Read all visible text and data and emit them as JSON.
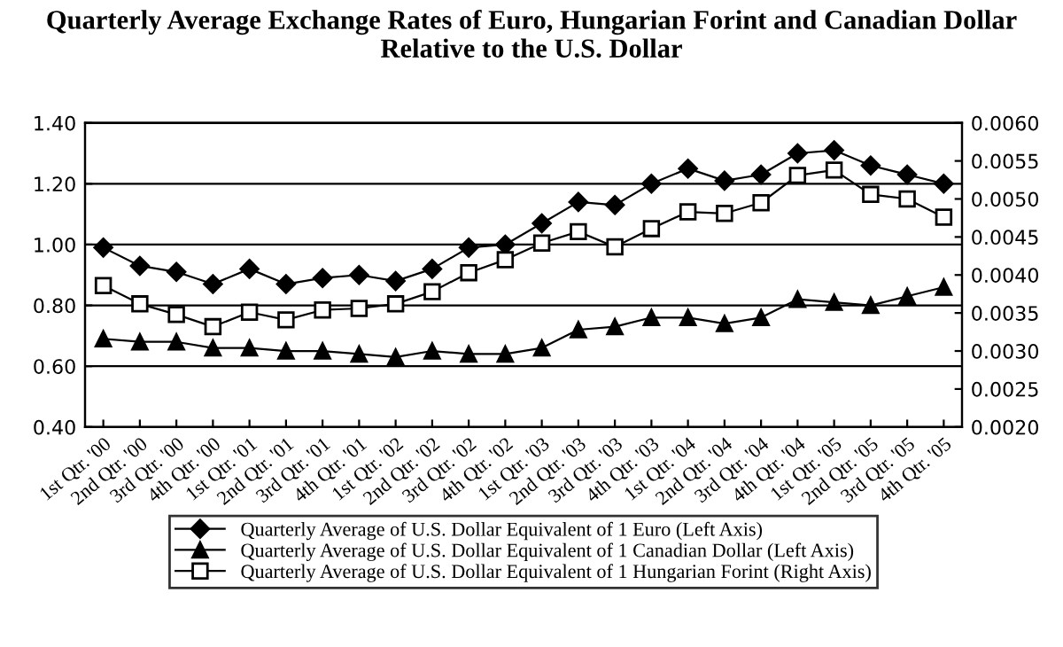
{
  "chart_data": {
    "type": "line",
    "title": "Quarterly Average Exchange Rates of Euro, Hungarian Forint and Canadian Dollar Relative to the U.S. Dollar",
    "categories": [
      "1st Qtr. '00",
      "2nd Qtr. '00",
      "3rd Qtr. '00",
      "4th Qtr. '00",
      "1st Qtr. '01",
      "2nd Qtr. '01",
      "3rd Qtr. '01",
      "4th Qtr. '01",
      "1st Qtr. '02",
      "2nd Qtr. '02",
      "3rd Qtr. '02",
      "4th Qtr. '02",
      "1st Qtr. '03",
      "2nd Qtr. '03",
      "3rd Qtr. '03",
      "4th Qtr. '03",
      "1st Qtr. '04",
      "2nd Qtr. '04",
      "3rd Qtr. '04",
      "4th Qtr. '04",
      "1st Qtr. '05",
      "2nd Qtr. '05",
      "3rd Qtr. '05",
      "4th Qtr. '05"
    ],
    "series": [
      {
        "name": "Quarterly Average of U.S. Dollar Equivalent of 1 Euro (Left Axis)",
        "color": "#000000",
        "marker": "diamond",
        "values": [
          0.99,
          0.93,
          0.91,
          0.87,
          0.92,
          0.87,
          0.89,
          0.9,
          0.88,
          0.92,
          0.99,
          1.0,
          1.07,
          1.14,
          1.13,
          1.2,
          1.25,
          1.21,
          1.23,
          1.3,
          1.31,
          1.26,
          1.23,
          1.2
        ]
      },
      {
        "name": "Quarterly Average of U.S. Dollar Equivalent of 1 Canadian Dollar (Left Axis)",
        "color": "#000000",
        "marker": "triangle",
        "values": [
          0.69,
          0.68,
          0.68,
          0.66,
          0.66,
          0.65,
          0.65,
          0.64,
          0.63,
          0.65,
          0.64,
          0.64,
          0.66,
          0.72,
          0.73,
          0.76,
          0.76,
          0.74,
          0.76,
          0.82,
          0.81,
          0.8,
          0.83,
          0.86
        ]
      },
      {
        "name": "Quarterly Average of U.S. Dollar Equivalent of 1 Hungarian Forint (Right Axis)",
        "color": "#000000",
        "marker": "square",
        "axis": "y2",
        "values": [
          0.00386,
          0.00362,
          0.00348,
          0.00332,
          0.00351,
          0.00341,
          0.00354,
          0.00356,
          0.00362,
          0.00378,
          0.00403,
          0.0042,
          0.00442,
          0.00457,
          0.00437,
          0.00461,
          0.00483,
          0.00481,
          0.00495,
          0.00531,
          0.00538,
          0.00506,
          0.005,
          0.00476
        ]
      }
    ],
    "ylim": [
      0.4,
      1.4
    ],
    "yticks": [
      {
        "value": 0.4,
        "label": "0.40"
      },
      {
        "value": 0.6,
        "label": "0.60"
      },
      {
        "value": 0.8,
        "label": "0.80"
      },
      {
        "value": 1.0,
        "label": "1.00"
      },
      {
        "value": 1.2,
        "label": "1.20"
      },
      {
        "value": 1.4,
        "label": "1.40"
      }
    ],
    "y2lim": [
      0.002,
      0.006
    ],
    "y2ticks": [
      {
        "value": 0.002,
        "label": "0.0020"
      },
      {
        "value": 0.0025,
        "label": "0.0025"
      },
      {
        "value": 0.003,
        "label": "0.0030"
      },
      {
        "value": 0.0035,
        "label": "0.0035"
      },
      {
        "value": 0.004,
        "label": "0.0040"
      },
      {
        "value": 0.0045,
        "label": "0.0045"
      },
      {
        "value": 0.005,
        "label": "0.0050"
      },
      {
        "value": 0.0055,
        "label": "0.0055"
      },
      {
        "value": 0.006,
        "label": "0.0060"
      }
    ],
    "grid": "y",
    "legend": "bottom",
    "line_style": "solid"
  }
}
